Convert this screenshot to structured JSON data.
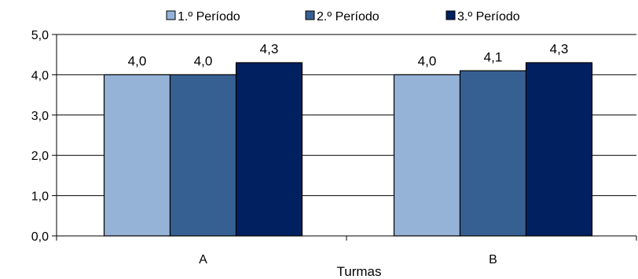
{
  "chart_data": {
    "type": "bar",
    "categories": [
      "A",
      "B"
    ],
    "series": [
      {
        "name": "1.º Período",
        "values": [
          4.0,
          4.0
        ],
        "color": "#95b3d7"
      },
      {
        "name": "2.º Período",
        "values": [
          4.0,
          4.1
        ],
        "color": "#376092"
      },
      {
        "name": "3.º Período",
        "values": [
          4.3,
          4.3
        ],
        "color": "#002060"
      }
    ],
    "data_labels": [
      [
        "4,0",
        "4,0"
      ],
      [
        "4,0",
        "4,1"
      ],
      [
        "4,3",
        "4,3"
      ]
    ],
    "xlabel": "Turmas",
    "ylabel": "",
    "ylim": [
      0,
      5
    ],
    "yticks": [
      0,
      1,
      2,
      3,
      4,
      5
    ],
    "ytick_labels": [
      "0,0",
      "1,0",
      "2,0",
      "3,0",
      "4,0",
      "5,0"
    ],
    "grid": true,
    "legend_position": "top"
  }
}
